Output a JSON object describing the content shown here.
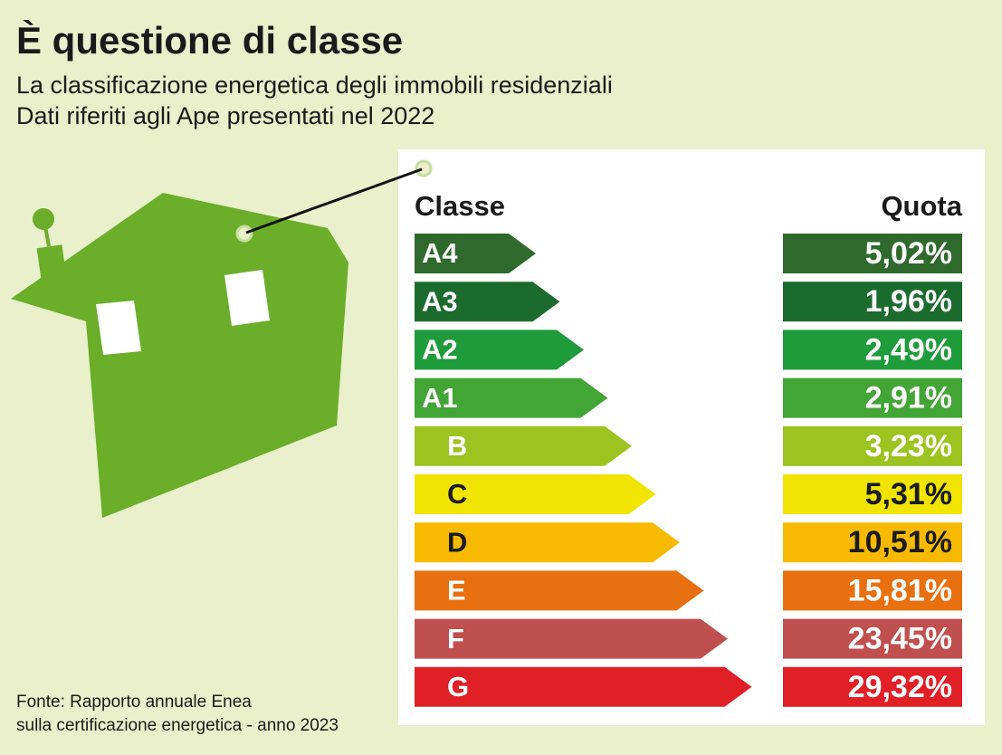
{
  "header": {
    "title": "È questione di classe",
    "subtitle": [
      "La classificazione energetica degli immobili residenziali",
      "Dati riferiti agli Ape presentati nel 2022"
    ]
  },
  "table": {
    "columns": [
      "Classe",
      "Quota"
    ],
    "rows": [
      {
        "class": "A4",
        "quota": "5,02%",
        "color": "#2f6a2c",
        "text_color": "#ffffff"
      },
      {
        "class": "A3",
        "quota": "1,96%",
        "color": "#1c6b2e",
        "text_color": "#ffffff"
      },
      {
        "class": "A2",
        "quota": "2,49%",
        "color": "#1f9b3b",
        "text_color": "#ffffff"
      },
      {
        "class": "A1",
        "quota": "2,91%",
        "color": "#43a536",
        "text_color": "#ffffff"
      },
      {
        "class": "B",
        "quota": "3,23%",
        "color": "#9cc31f",
        "text_color": "#ffffff"
      },
      {
        "class": "C",
        "quota": "5,31%",
        "color": "#f1e400",
        "text_color": "#1a1a1a"
      },
      {
        "class": "D",
        "quota": "10,51%",
        "color": "#f7ba00",
        "text_color": "#1a1a1a"
      },
      {
        "class": "E",
        "quota": "15,81%",
        "color": "#e8700f",
        "text_color": "#ffffff"
      },
      {
        "class": "F",
        "quota": "23,45%",
        "color": "#c0504f",
        "text_color": "#ffffff"
      },
      {
        "class": "G",
        "quota": "29,32%",
        "color": "#e11f27",
        "text_color": "#ffffff"
      }
    ]
  },
  "source": [
    "Fonte: Rapporto annuale Enea",
    "sulla certificazione energetica - anno 2023"
  ]
}
